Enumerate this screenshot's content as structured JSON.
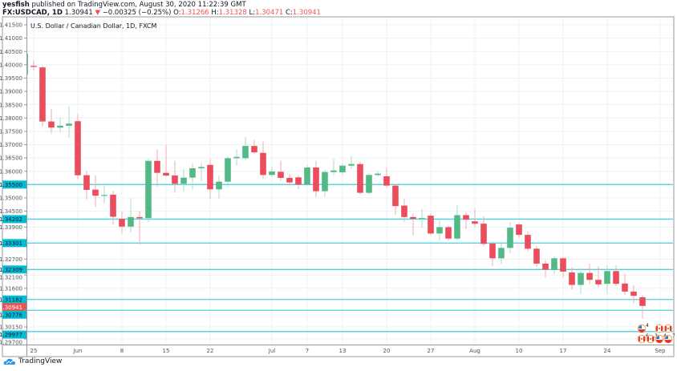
{
  "header": {
    "author": "yesfish",
    "published": "published on TradingView.com, August 30, 2020 11:22:39 GMT",
    "symbol": "FX:USDCAD, 1D",
    "last": "1.30941",
    "change": "−0.00325 (−0.25%)",
    "o_label": "O:",
    "o": "1.31266",
    "h_label": "H:",
    "h": "1.31328",
    "l_label": "L:",
    "l": "1.30471",
    "c_label": "C:",
    "c": "1.30941",
    "down_icon": "triangle-down-icon"
  },
  "footer": {
    "brand": "TradingView",
    "logo_icon": "tradingview-cloud-icon"
  },
  "colors": {
    "up": "#53b987",
    "down": "#eb4d5c",
    "level": "#4dd0e1",
    "level_label": "#00bcd4",
    "last_label": "#ef5350",
    "grid": "#eef1f6"
  },
  "chart_data": {
    "type": "candlestick",
    "title": "U.S. Dollar / Canadian Dollar, 1D, FXCM",
    "ylim": [
      1.2946,
      1.4174
    ],
    "y_ticks": [
      "1.41500",
      "1.41000",
      "1.40500",
      "1.40000",
      "1.39500",
      "1.39000",
      "1.38500",
      "1.38000",
      "1.37500",
      "1.37000",
      "1.36500",
      "1.36000",
      "1.35000",
      "1.34500",
      "1.33900",
      "1.32700",
      "1.32100",
      "1.31600",
      "1.30150",
      "1.29700"
    ],
    "x_ticks": [
      {
        "label": "25",
        "bar": 1
      },
      {
        "label": "Jun",
        "bar": 6
      },
      {
        "label": "8",
        "bar": 11
      },
      {
        "label": "15",
        "bar": 16
      },
      {
        "label": "22",
        "bar": 21
      },
      {
        "label": "Jul",
        "bar": 28
      },
      {
        "label": "7",
        "bar": 32
      },
      {
        "label": "13",
        "bar": 36
      },
      {
        "label": "20",
        "bar": 41
      },
      {
        "label": "27",
        "bar": 46
      },
      {
        "label": "Aug",
        "bar": 51
      },
      {
        "label": "10",
        "bar": 56
      },
      {
        "label": "17",
        "bar": 61
      },
      {
        "label": "24",
        "bar": 66
      },
      {
        "label": "Sep",
        "bar": 72
      }
    ],
    "levels": [
      "1.35500",
      "1.34202",
      "1.33301",
      "1.32309",
      "1.31182",
      "1.30776",
      "1.29977"
    ],
    "last_price": "1.30941",
    "ohlc": [
      [
        1.3963,
        1.4045,
        1.396,
        1.4042
      ],
      [
        1.3996,
        1.4015,
        1.3978,
        1.3992
      ],
      [
        1.399,
        1.3995,
        1.3769,
        1.3787
      ],
      [
        1.3787,
        1.3834,
        1.3741,
        1.3764
      ],
      [
        1.3764,
        1.3802,
        1.3746,
        1.3771
      ],
      [
        1.3771,
        1.3844,
        1.3726,
        1.3779
      ],
      [
        1.3788,
        1.3814,
        1.3571,
        1.3585
      ],
      [
        1.3585,
        1.3599,
        1.3495,
        1.353
      ],
      [
        1.3531,
        1.3584,
        1.3465,
        1.3508
      ],
      [
        1.3508,
        1.3553,
        1.3479,
        1.3511
      ],
      [
        1.3512,
        1.3526,
        1.34,
        1.3429
      ],
      [
        1.3421,
        1.3449,
        1.3367,
        1.3392
      ],
      [
        1.3392,
        1.3499,
        1.337,
        1.3428
      ],
      [
        1.3428,
        1.3451,
        1.3325,
        1.3423
      ],
      [
        1.3424,
        1.3646,
        1.3409,
        1.3639
      ],
      [
        1.3639,
        1.3681,
        1.3541,
        1.3594
      ],
      [
        1.3594,
        1.3699,
        1.358,
        1.3584
      ],
      [
        1.3584,
        1.3639,
        1.3519,
        1.3553
      ],
      [
        1.3553,
        1.3608,
        1.3524,
        1.3576
      ],
      [
        1.3576,
        1.3629,
        1.3533,
        1.3611
      ],
      [
        1.3611,
        1.3631,
        1.3564,
        1.3616
      ],
      [
        1.3624,
        1.3646,
        1.3497,
        1.3532
      ],
      [
        1.3532,
        1.3583,
        1.3498,
        1.3561
      ],
      [
        1.3561,
        1.3656,
        1.3541,
        1.3649
      ],
      [
        1.3649,
        1.3683,
        1.3621,
        1.3654
      ],
      [
        1.3649,
        1.3729,
        1.3641,
        1.3695
      ],
      [
        1.3695,
        1.3717,
        1.3664,
        1.3671
      ],
      [
        1.3669,
        1.3711,
        1.3572,
        1.3586
      ],
      [
        1.3586,
        1.362,
        1.3578,
        1.3599
      ],
      [
        1.3598,
        1.3639,
        1.3565,
        1.3575
      ],
      [
        1.3575,
        1.359,
        1.3547,
        1.3558
      ],
      [
        1.3577,
        1.3585,
        1.3533,
        1.355
      ],
      [
        1.355,
        1.3622,
        1.3545,
        1.3614
      ],
      [
        1.3614,
        1.3638,
        1.3504,
        1.3525
      ],
      [
        1.3525,
        1.3605,
        1.3504,
        1.3597
      ],
      [
        1.3597,
        1.3646,
        1.3588,
        1.3603
      ],
      [
        1.3596,
        1.363,
        1.3587,
        1.3621
      ],
      [
        1.3621,
        1.3658,
        1.3609,
        1.3627
      ],
      [
        1.3627,
        1.3635,
        1.3513,
        1.3519
      ],
      [
        1.3519,
        1.3593,
        1.3513,
        1.3586
      ],
      [
        1.3586,
        1.36,
        1.358,
        1.3591
      ],
      [
        1.3581,
        1.3613,
        1.3538,
        1.3546
      ],
      [
        1.3546,
        1.3552,
        1.3437,
        1.3469
      ],
      [
        1.3471,
        1.3496,
        1.341,
        1.3428
      ],
      [
        1.3428,
        1.3442,
        1.336,
        1.3421
      ],
      [
        1.3422,
        1.3458,
        1.3388,
        1.3424
      ],
      [
        1.3433,
        1.3442,
        1.336,
        1.3366
      ],
      [
        1.3366,
        1.3418,
        1.334,
        1.339
      ],
      [
        1.339,
        1.3396,
        1.334,
        1.3347
      ],
      [
        1.3347,
        1.3473,
        1.334,
        1.3435
      ],
      [
        1.3435,
        1.3448,
        1.3382,
        1.3418
      ],
      [
        1.3412,
        1.3463,
        1.3392,
        1.3403
      ],
      [
        1.3403,
        1.3431,
        1.3318,
        1.3327
      ],
      [
        1.3328,
        1.3337,
        1.3244,
        1.3273
      ],
      [
        1.3273,
        1.3333,
        1.3252,
        1.3312
      ],
      [
        1.3312,
        1.341,
        1.3292,
        1.3388
      ],
      [
        1.34,
        1.3405,
        1.335,
        1.3361
      ],
      [
        1.3361,
        1.3375,
        1.33,
        1.3309
      ],
      [
        1.3309,
        1.3319,
        1.324,
        1.3253
      ],
      [
        1.3253,
        1.3265,
        1.32,
        1.323
      ],
      [
        1.3229,
        1.328,
        1.3215,
        1.3273
      ],
      [
        1.3273,
        1.3278,
        1.32,
        1.3223
      ],
      [
        1.322,
        1.324,
        1.3155,
        1.3173
      ],
      [
        1.3173,
        1.3235,
        1.314,
        1.3218
      ],
      [
        1.3218,
        1.3253,
        1.3175,
        1.3192
      ],
      [
        1.3192,
        1.3243,
        1.3165,
        1.3175
      ],
      [
        1.3177,
        1.3247,
        1.314,
        1.3225
      ],
      [
        1.3225,
        1.3246,
        1.317,
        1.3177
      ],
      [
        1.3178,
        1.3213,
        1.3135,
        1.3148
      ],
      [
        1.3148,
        1.3172,
        1.3105,
        1.3132
      ],
      [
        1.31266,
        1.31328,
        1.30471,
        1.30941
      ]
    ],
    "events": [
      {
        "country": "US",
        "count": "4",
        "row": 0,
        "bar": 70
      },
      {
        "country": "CA",
        "count": "",
        "row": 0,
        "bar": 72
      },
      {
        "country": "CA",
        "count": "",
        "row": 0,
        "bar": 73
      },
      {
        "country": "CA",
        "count": "6",
        "row": 1,
        "bar": 70
      },
      {
        "country": "CA",
        "count": "3",
        "row": 1,
        "bar": 71
      },
      {
        "country": "US",
        "count": "4",
        "row": 1,
        "bar": 72
      },
      {
        "country": "US",
        "count": "7",
        "row": 1,
        "bar": 73
      }
    ]
  }
}
